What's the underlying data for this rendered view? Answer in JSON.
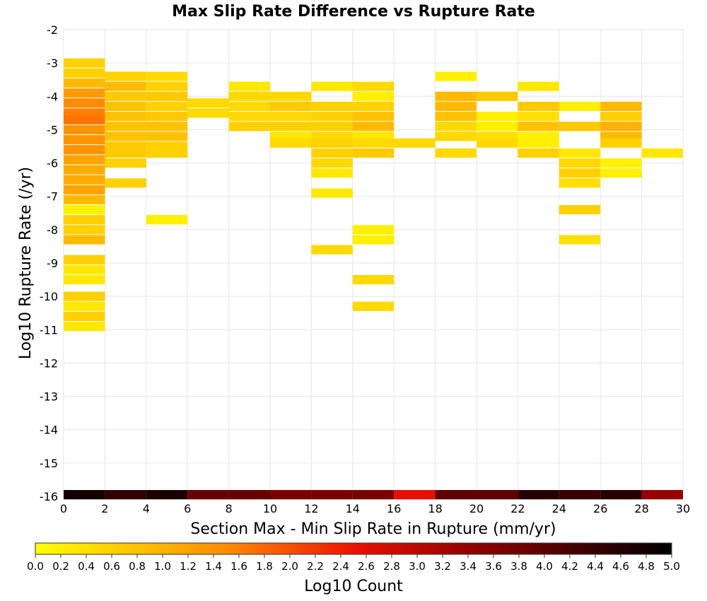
{
  "chart_data": {
    "type": "heatmap",
    "title": "Max Slip Rate Difference vs Rupture Rate",
    "xlabel": "Section Max - Min Slip Rate in Rupture (mm/yr)",
    "ylabel": "Log10 Rupture Rate (/yr)",
    "xlim": [
      0,
      30
    ],
    "ylim": [
      -16,
      -2
    ],
    "x_ticks": [
      "0",
      "2",
      "4",
      "6",
      "8",
      "10",
      "12",
      "14",
      "16",
      "18",
      "20",
      "22",
      "24",
      "26",
      "28",
      "30"
    ],
    "y_ticks": [
      "-2",
      "-3",
      "-4",
      "-5",
      "-6",
      "-7",
      "-8",
      "-9",
      "-10",
      "-11",
      "-12",
      "-13",
      "-14",
      "-15",
      "-16"
    ],
    "grid": true,
    "colorbar": {
      "label": "Log10 Count",
      "range": [
        0,
        5
      ],
      "palette": "yellow-orange-red-black",
      "ticks": [
        "0.0",
        "0.2",
        "0.4",
        "0.6",
        "0.8",
        "1.0",
        "1.2",
        "1.4",
        "1.6",
        "1.8",
        "2.0",
        "2.2",
        "2.4",
        "2.6",
        "2.8",
        "3.0",
        "3.2",
        "3.4",
        "3.6",
        "3.8",
        "4.0",
        "4.2",
        "4.4",
        "4.6",
        "4.8",
        "5.0"
      ]
    },
    "cell_width": 2,
    "cell_height": 0.28,
    "cells": [
      {
        "x": 0,
        "y": -3.0,
        "v": 0.6
      },
      {
        "x": 0,
        "y": -3.3,
        "v": 0.6
      },
      {
        "x": 0,
        "y": -3.6,
        "v": 0.9
      },
      {
        "x": 0,
        "y": -3.9,
        "v": 1.3
      },
      {
        "x": 0,
        "y": -4.2,
        "v": 1.5
      },
      {
        "x": 0,
        "y": -4.5,
        "v": 1.6
      },
      {
        "x": 0,
        "y": -4.7,
        "v": 1.7
      },
      {
        "x": 0,
        "y": -5.0,
        "v": 1.4
      },
      {
        "x": 0,
        "y": -5.3,
        "v": 1.4
      },
      {
        "x": 0,
        "y": -5.6,
        "v": 1.4
      },
      {
        "x": 0,
        "y": -5.9,
        "v": 1.2
      },
      {
        "x": 0,
        "y": -6.2,
        "v": 1.1
      },
      {
        "x": 0,
        "y": -6.5,
        "v": 1.1
      },
      {
        "x": 0,
        "y": -6.8,
        "v": 1.2
      },
      {
        "x": 0,
        "y": -7.1,
        "v": 0.9
      },
      {
        "x": 0,
        "y": -7.4,
        "v": 0.2
      },
      {
        "x": 0,
        "y": -7.7,
        "v": 0.6
      },
      {
        "x": 0,
        "y": -8.0,
        "v": 0.6
      },
      {
        "x": 0,
        "y": -8.3,
        "v": 0.9
      },
      {
        "x": 0,
        "y": -8.9,
        "v": 0.6
      },
      {
        "x": 0,
        "y": -9.2,
        "v": 0.3
      },
      {
        "x": 0,
        "y": -9.5,
        "v": 0.3
      },
      {
        "x": 0,
        "y": -10.0,
        "v": 0.6
      },
      {
        "x": 0,
        "y": -10.3,
        "v": 0.3
      },
      {
        "x": 0,
        "y": -10.6,
        "v": 0.6
      },
      {
        "x": 0,
        "y": -10.9,
        "v": 0.3
      },
      {
        "x": 2,
        "y": -3.4,
        "v": 0.6
      },
      {
        "x": 2,
        "y": -3.7,
        "v": 0.9
      },
      {
        "x": 2,
        "y": -4.0,
        "v": 0.7
      },
      {
        "x": 2,
        "y": -4.3,
        "v": 0.8
      },
      {
        "x": 2,
        "y": -4.6,
        "v": 0.8
      },
      {
        "x": 2,
        "y": -4.9,
        "v": 0.8
      },
      {
        "x": 2,
        "y": -5.2,
        "v": 0.8
      },
      {
        "x": 2,
        "y": -5.5,
        "v": 0.7
      },
      {
        "x": 2,
        "y": -5.7,
        "v": 0.7
      },
      {
        "x": 2,
        "y": -6.0,
        "v": 0.6
      },
      {
        "x": 2,
        "y": -6.6,
        "v": 0.6
      },
      {
        "x": 4,
        "y": -3.4,
        "v": 0.5
      },
      {
        "x": 4,
        "y": -3.7,
        "v": 0.6
      },
      {
        "x": 4,
        "y": -4.0,
        "v": 0.7
      },
      {
        "x": 4,
        "y": -4.3,
        "v": 0.6
      },
      {
        "x": 4,
        "y": -4.6,
        "v": 0.7
      },
      {
        "x": 4,
        "y": -4.9,
        "v": 0.8
      },
      {
        "x": 4,
        "y": -5.2,
        "v": 0.8
      },
      {
        "x": 4,
        "y": -5.5,
        "v": 0.6
      },
      {
        "x": 4,
        "y": -5.7,
        "v": 0.6
      },
      {
        "x": 4,
        "y": -7.7,
        "v": 0.2
      },
      {
        "x": 6,
        "y": -4.2,
        "v": 0.5
      },
      {
        "x": 6,
        "y": -4.5,
        "v": 0.5
      },
      {
        "x": 8,
        "y": -3.7,
        "v": 0.3
      },
      {
        "x": 8,
        "y": -4.0,
        "v": 0.5
      },
      {
        "x": 8,
        "y": -4.3,
        "v": 0.5
      },
      {
        "x": 8,
        "y": -4.6,
        "v": 0.5
      },
      {
        "x": 8,
        "y": -4.9,
        "v": 0.6
      },
      {
        "x": 10,
        "y": -4.0,
        "v": 0.5
      },
      {
        "x": 10,
        "y": -4.3,
        "v": 0.7
      },
      {
        "x": 10,
        "y": -4.6,
        "v": 0.5
      },
      {
        "x": 10,
        "y": -4.9,
        "v": 0.6
      },
      {
        "x": 10,
        "y": -5.2,
        "v": 0.3
      },
      {
        "x": 10,
        "y": -5.4,
        "v": 0.5
      },
      {
        "x": 12,
        "y": -3.7,
        "v": 0.3
      },
      {
        "x": 12,
        "y": -4.3,
        "v": 0.6
      },
      {
        "x": 12,
        "y": -4.6,
        "v": 0.6
      },
      {
        "x": 12,
        "y": -4.9,
        "v": 0.6
      },
      {
        "x": 12,
        "y": -5.2,
        "v": 0.5
      },
      {
        "x": 12,
        "y": -5.4,
        "v": 0.6
      },
      {
        "x": 12,
        "y": -5.7,
        "v": 0.6
      },
      {
        "x": 12,
        "y": -6.0,
        "v": 0.5
      },
      {
        "x": 12,
        "y": -6.3,
        "v": 0.3
      },
      {
        "x": 12,
        "y": -6.9,
        "v": 0.3
      },
      {
        "x": 12,
        "y": -8.6,
        "v": 0.5
      },
      {
        "x": 14,
        "y": -3.7,
        "v": 0.5
      },
      {
        "x": 14,
        "y": -4.0,
        "v": 0.2
      },
      {
        "x": 14,
        "y": -4.3,
        "v": 0.6
      },
      {
        "x": 14,
        "y": -4.6,
        "v": 0.8
      },
      {
        "x": 14,
        "y": -4.9,
        "v": 0.9
      },
      {
        "x": 14,
        "y": -5.2,
        "v": 0.3
      },
      {
        "x": 14,
        "y": -5.4,
        "v": 0.5
      },
      {
        "x": 14,
        "y": -5.7,
        "v": 0.7
      },
      {
        "x": 14,
        "y": -8.0,
        "v": 0.2
      },
      {
        "x": 14,
        "y": -8.3,
        "v": 0.2
      },
      {
        "x": 14,
        "y": -9.5,
        "v": 0.5
      },
      {
        "x": 14,
        "y": -10.3,
        "v": 0.5
      },
      {
        "x": 16,
        "y": -5.4,
        "v": 0.5
      },
      {
        "x": 18,
        "y": -3.4,
        "v": 0.2
      },
      {
        "x": 18,
        "y": -4.0,
        "v": 0.9
      },
      {
        "x": 18,
        "y": -4.3,
        "v": 0.9
      },
      {
        "x": 18,
        "y": -4.6,
        "v": 0.8
      },
      {
        "x": 18,
        "y": -4.9,
        "v": 0.5
      },
      {
        "x": 18,
        "y": -5.2,
        "v": 0.5
      },
      {
        "x": 18,
        "y": -5.7,
        "v": 0.5
      },
      {
        "x": 20,
        "y": -4.0,
        "v": 0.7
      },
      {
        "x": 20,
        "y": -4.6,
        "v": 0.2
      },
      {
        "x": 20,
        "y": -4.9,
        "v": 0.2
      },
      {
        "x": 20,
        "y": -5.2,
        "v": 0.4
      },
      {
        "x": 20,
        "y": -5.4,
        "v": 0.5
      },
      {
        "x": 22,
        "y": -3.7,
        "v": 0.3
      },
      {
        "x": 22,
        "y": -4.3,
        "v": 0.7
      },
      {
        "x": 22,
        "y": -4.6,
        "v": 0.4
      },
      {
        "x": 22,
        "y": -4.9,
        "v": 0.8
      },
      {
        "x": 22,
        "y": -5.2,
        "v": 0.2
      },
      {
        "x": 22,
        "y": -5.4,
        "v": 0.2
      },
      {
        "x": 22,
        "y": -5.7,
        "v": 0.6
      },
      {
        "x": 24,
        "y": -4.3,
        "v": 0.2
      },
      {
        "x": 24,
        "y": -4.9,
        "v": 0.7
      },
      {
        "x": 24,
        "y": -5.7,
        "v": 0.3
      },
      {
        "x": 24,
        "y": -6.0,
        "v": 0.5
      },
      {
        "x": 24,
        "y": -6.3,
        "v": 0.6
      },
      {
        "x": 24,
        "y": -6.6,
        "v": 0.4
      },
      {
        "x": 24,
        "y": -7.4,
        "v": 0.6
      },
      {
        "x": 24,
        "y": -8.3,
        "v": 0.4
      },
      {
        "x": 26,
        "y": -4.3,
        "v": 0.9
      },
      {
        "x": 26,
        "y": -4.6,
        "v": 0.6
      },
      {
        "x": 26,
        "y": -4.9,
        "v": 1.0
      },
      {
        "x": 26,
        "y": -5.2,
        "v": 0.9
      },
      {
        "x": 26,
        "y": -5.4,
        "v": 0.6
      },
      {
        "x": 26,
        "y": -6.0,
        "v": 0.2
      },
      {
        "x": 26,
        "y": -6.3,
        "v": 0.2
      },
      {
        "x": 28,
        "y": -5.7,
        "v": 0.3
      },
      {
        "x": 0,
        "y": -15.95,
        "v": 4.8
      },
      {
        "x": 2,
        "y": -15.95,
        "v": 4.5
      },
      {
        "x": 4,
        "y": -15.95,
        "v": 4.7
      },
      {
        "x": 6,
        "y": -15.95,
        "v": 3.9
      },
      {
        "x": 8,
        "y": -15.95,
        "v": 3.9
      },
      {
        "x": 10,
        "y": -15.95,
        "v": 3.7
      },
      {
        "x": 12,
        "y": -15.95,
        "v": 3.7
      },
      {
        "x": 14,
        "y": -15.95,
        "v": 3.7
      },
      {
        "x": 16,
        "y": -15.95,
        "v": 2.6
      },
      {
        "x": 18,
        "y": -15.95,
        "v": 4.0
      },
      {
        "x": 20,
        "y": -15.95,
        "v": 4.0
      },
      {
        "x": 22,
        "y": -15.95,
        "v": 4.6
      },
      {
        "x": 24,
        "y": -15.95,
        "v": 4.4
      },
      {
        "x": 26,
        "y": -15.95,
        "v": 4.6
      },
      {
        "x": 28,
        "y": -15.95,
        "v": 3.4
      }
    ]
  }
}
